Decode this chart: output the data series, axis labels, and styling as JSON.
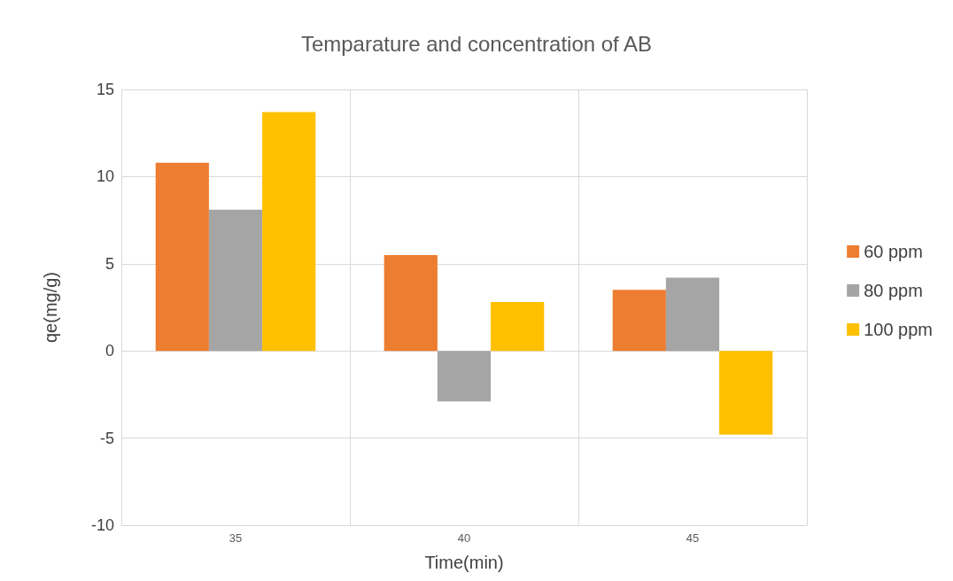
{
  "chart_data": {
    "type": "bar",
    "title": "Temparature and concentration of AB",
    "xlabel": "Time(min)",
    "ylabel": "qe(mg/g)",
    "categories": [
      "35",
      "40",
      "45"
    ],
    "series": [
      {
        "name": "60 ppm",
        "color": "#ed7d31",
        "values": [
          10.8,
          5.5,
          3.5
        ]
      },
      {
        "name": "80 ppm",
        "color": "#a5a5a5",
        "values": [
          8.1,
          -2.9,
          4.2
        ]
      },
      {
        "name": "100 ppm",
        "color": "#ffc000",
        "values": [
          13.7,
          2.8,
          -4.8
        ]
      }
    ],
    "ylim": [
      -10,
      15
    ],
    "yticks": [
      -10,
      -5,
      0,
      5,
      10,
      15
    ],
    "grid": true,
    "legend": "right"
  }
}
